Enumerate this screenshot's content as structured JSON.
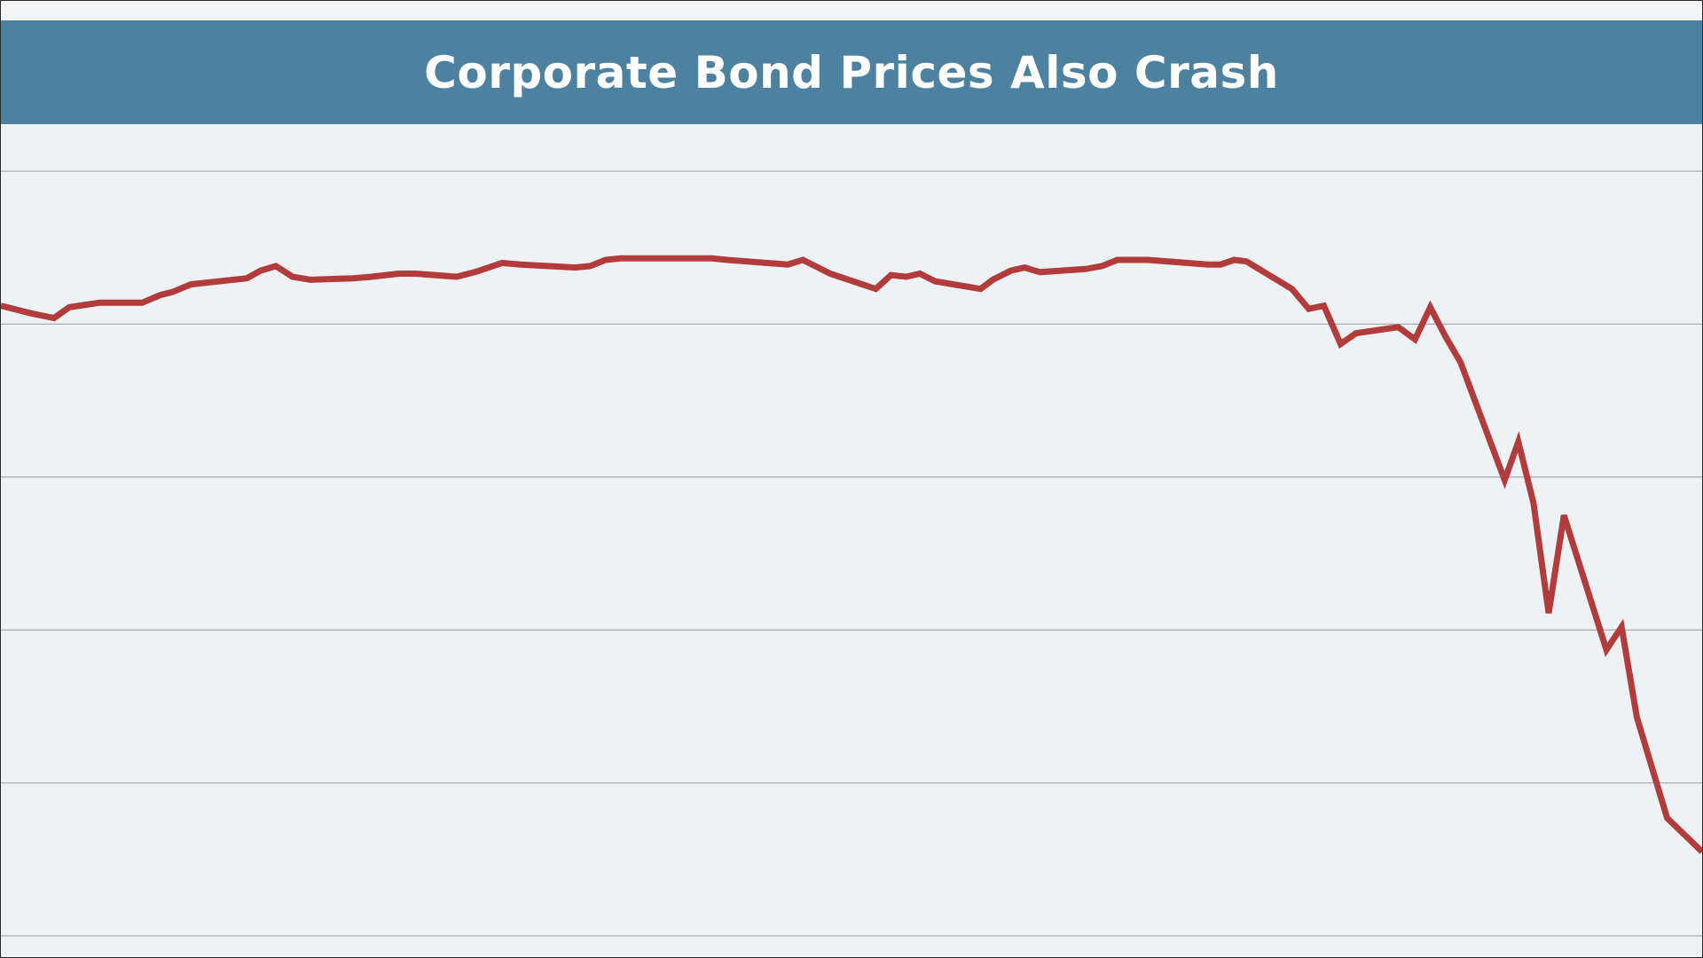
{
  "title": "Corporate Bond Prices Also Crash",
  "colors": {
    "title_bar": "#4c82a0",
    "background": "#eef2f5",
    "line": "#b23b3b",
    "grid": "#a9aeb3"
  },
  "chart_data": {
    "type": "line",
    "title": "Corporate Bond Prices Also Crash",
    "xlabel": "",
    "ylabel": "",
    "grid": true,
    "legend": "none",
    "ylim": [
      0,
      5
    ],
    "xlim": [
      0,
      112
    ],
    "gridlines": [
      0,
      1,
      2,
      3,
      4,
      5
    ],
    "series": [
      {
        "values": [
          [
            0,
            4.12
          ],
          [
            2,
            4.07
          ],
          [
            3,
            4.05
          ],
          [
            3.5,
            4.04
          ],
          [
            4.5,
            4.11
          ],
          [
            6.5,
            4.14
          ],
          [
            9.3,
            4.14
          ],
          [
            10.5,
            4.19
          ],
          [
            11.3,
            4.21
          ],
          [
            12.5,
            4.26
          ],
          [
            16.2,
            4.3
          ],
          [
            17.1,
            4.35
          ],
          [
            18.1,
            4.38
          ],
          [
            19.2,
            4.31
          ],
          [
            20.4,
            4.29
          ],
          [
            23.2,
            4.3
          ],
          [
            24.4,
            4.31
          ],
          [
            26.2,
            4.33
          ],
          [
            27.3,
            4.33
          ],
          [
            30,
            4.31
          ],
          [
            31.2,
            4.34
          ],
          [
            33,
            4.4
          ],
          [
            34.2,
            4.39
          ],
          [
            37.8,
            4.37
          ],
          [
            38.8,
            4.38
          ],
          [
            39.8,
            4.42
          ],
          [
            40.8,
            4.43
          ],
          [
            46.8,
            4.43
          ],
          [
            47.8,
            4.42
          ],
          [
            51.8,
            4.39
          ],
          [
            52.8,
            4.42
          ],
          [
            54.6,
            4.33
          ],
          [
            57.6,
            4.23
          ],
          [
            58.6,
            4.32
          ],
          [
            59.6,
            4.31
          ],
          [
            60.5,
            4.33
          ],
          [
            61.5,
            4.28
          ],
          [
            64.5,
            4.23
          ],
          [
            65.3,
            4.29
          ],
          [
            66.5,
            4.35
          ],
          [
            67.4,
            4.37
          ],
          [
            68.4,
            4.34
          ],
          [
            71.4,
            4.36
          ],
          [
            72.5,
            4.38
          ],
          [
            73.5,
            4.42
          ],
          [
            75.5,
            4.42
          ],
          [
            79.5,
            4.39
          ],
          [
            80.3,
            4.39
          ],
          [
            81.2,
            4.42
          ],
          [
            82,
            4.41
          ],
          [
            85,
            4.23
          ],
          [
            86.1,
            4.1
          ],
          [
            87.1,
            4.12
          ],
          [
            88.2,
            3.87
          ],
          [
            89.2,
            3.94
          ],
          [
            92,
            3.98
          ],
          [
            93.1,
            3.9
          ],
          [
            94.1,
            4.11
          ],
          [
            95.1,
            3.92
          ],
          [
            96.1,
            3.75
          ],
          [
            99,
            2.98
          ],
          [
            99.9,
            3.23
          ],
          [
            100.9,
            2.83
          ],
          [
            101.9,
            2.11
          ],
          [
            102.9,
            2.75
          ],
          [
            105.7,
            1.87
          ],
          [
            106.7,
            2.02
          ],
          [
            107.7,
            1.43
          ],
          [
            109.7,
            0.77
          ],
          [
            112,
            0.55
          ]
        ]
      }
    ]
  }
}
